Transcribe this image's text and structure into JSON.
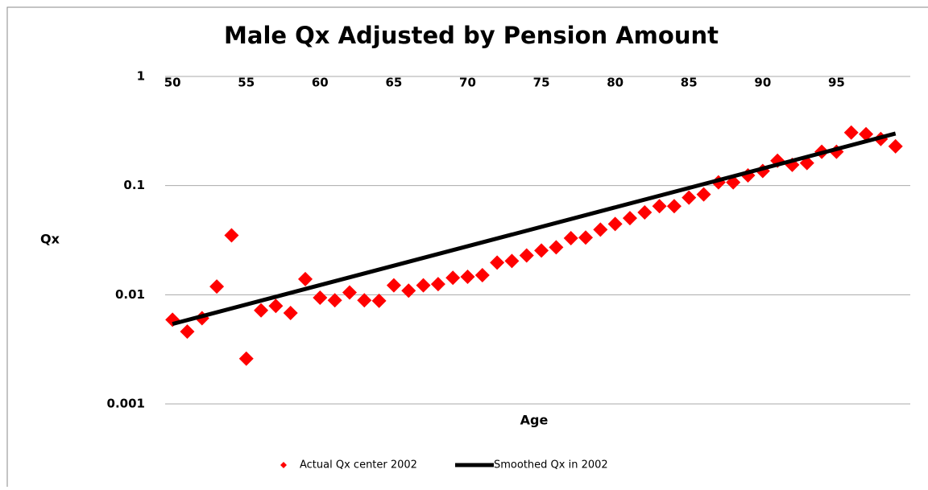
{
  "chart_data": {
    "type": "scatter-line",
    "title": "Male Qx Adjusted by Pension Amount",
    "x_label": "Age",
    "y_label": "Qx",
    "log_y": true,
    "grid": true,
    "legend": "bottom",
    "xlim": [
      49.5,
      100
    ],
    "xticks": [
      50,
      55,
      60,
      65,
      70,
      75,
      80,
      85,
      90,
      95
    ],
    "ylim": [
      0.001,
      1
    ],
    "yticks": [
      1,
      0.1,
      0.01,
      0.001
    ],
    "series": [
      {
        "name": "Actual Qx center 2002",
        "color": "#ff0000",
        "kind": "marker",
        "x": [
          50,
          51,
          52,
          53,
          54,
          55,
          56,
          57,
          58,
          59,
          60,
          61,
          62,
          63,
          64,
          65,
          66,
          67,
          68,
          69,
          70,
          71,
          72,
          73,
          74,
          75,
          76,
          77,
          78,
          79,
          80,
          81,
          82,
          83,
          84,
          85,
          86,
          87,
          88,
          89,
          90,
          91,
          92,
          93,
          94,
          95,
          96,
          97,
          98,
          99
        ],
        "values": [
          0.0059,
          0.0046,
          0.0061,
          0.0119,
          0.035,
          0.0026,
          0.0072,
          0.0079,
          0.0068,
          0.0139,
          0.0094,
          0.0089,
          0.0105,
          0.0089,
          0.0088,
          0.0122,
          0.0109,
          0.0122,
          0.0125,
          0.0143,
          0.0146,
          0.0151,
          0.0197,
          0.0204,
          0.0229,
          0.0254,
          0.0272,
          0.033,
          0.0334,
          0.0395,
          0.0445,
          0.0503,
          0.0568,
          0.0648,
          0.0648,
          0.0775,
          0.083,
          0.107,
          0.107,
          0.124,
          0.136,
          0.169,
          0.155,
          0.161,
          0.204,
          0.204,
          0.306,
          0.296,
          0.267,
          0.229
        ]
      },
      {
        "name": "Smoothed Qx in 2002",
        "color": "#000000",
        "kind": "line",
        "x": [
          50,
          99
        ],
        "values": [
          0.0054,
          0.3
        ]
      }
    ]
  }
}
